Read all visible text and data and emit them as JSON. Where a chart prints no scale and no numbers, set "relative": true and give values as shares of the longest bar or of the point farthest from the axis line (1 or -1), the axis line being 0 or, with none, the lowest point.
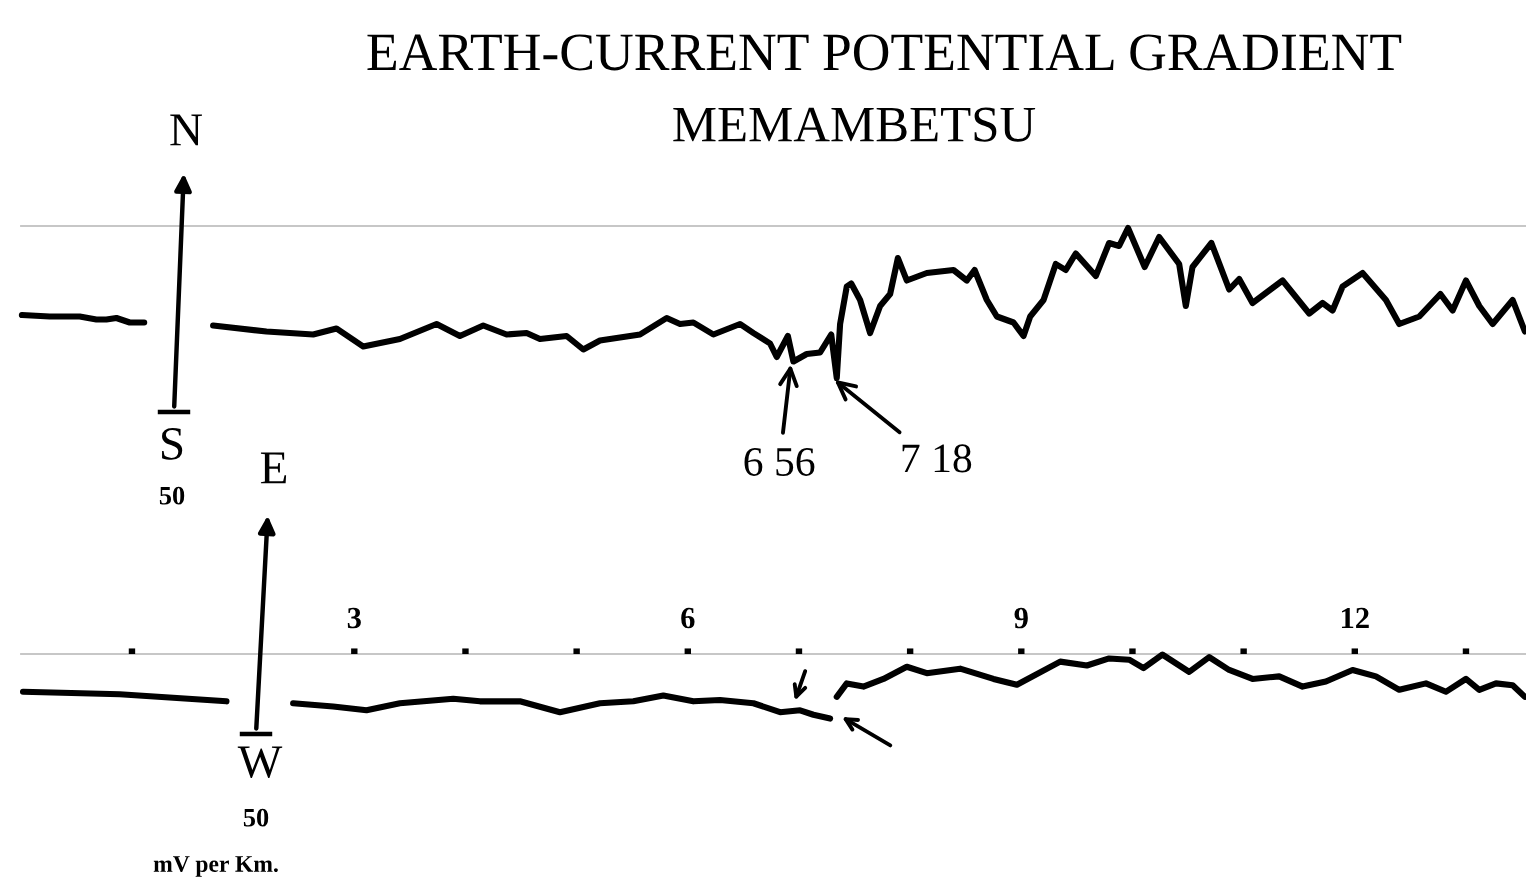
{
  "chart_data": [
    {
      "type": "line",
      "title": "EARTH-CURRENT POTENTIAL GRADIENT",
      "subtitle": "MEMAMBETSU",
      "relative": true,
      "xlim": [
        0,
        13.54
      ],
      "tick_labels": false,
      "series": [
        {
          "color": "#000000",
          "x": [
            0.01,
            0.26,
            0.53,
            0.68,
            0.77,
            0.86,
            0.98,
            1.11,
            1.4,
            1.73,
            2.21,
            2.63,
            2.84,
            3.08,
            3.41,
            3.74,
            3.95,
            4.16,
            4.37,
            4.55,
            4.67,
            4.91,
            5.06,
            5.21,
            5.57,
            5.81,
            5.93,
            6.05,
            6.23,
            6.47,
            6.59,
            6.74,
            6.8,
            6.9,
            6.95,
            7.07,
            7.19,
            7.29,
            7.34,
            7.37,
            7.43,
            7.47,
            7.55,
            7.64,
            7.73,
            7.82,
            7.89,
            7.97,
            8.15,
            8.39,
            8.51,
            8.58,
            8.69,
            8.78,
            8.93,
            9.02,
            9.08,
            9.2,
            9.31,
            9.4,
            9.49,
            9.67,
            9.79,
            9.88,
            9.96,
            10.11,
            10.24,
            10.42,
            10.48,
            10.54,
            10.71,
            10.87,
            10.96,
            11.08,
            11.35,
            11.59,
            11.71,
            11.8,
            11.89,
            12.07,
            12.28,
            12.4,
            12.58,
            12.77,
            12.88,
            13.0,
            13.12,
            13.24,
            13.42,
            13.53
          ],
          "values": [
            0.42,
            0.41,
            0.41,
            0.39,
            0.39,
            0.4,
            0.37,
            0.37,
            null,
            0.35,
            0.31,
            0.29,
            0.33,
            0.21,
            0.26,
            0.36,
            0.28,
            0.35,
            0.29,
            0.3,
            0.26,
            0.28,
            0.19,
            0.25,
            0.29,
            0.4,
            0.36,
            0.37,
            0.29,
            0.36,
            0.3,
            0.23,
            0.14,
            0.28,
            0.11,
            0.16,
            0.17,
            0.29,
            0,
            0.36,
            0.61,
            0.63,
            0.52,
            0.3,
            0.48,
            0.56,
            0.8,
            0.65,
            0.7,
            0.72,
            0.65,
            0.72,
            0.52,
            0.41,
            0.37,
            0.28,
            0.41,
            0.52,
            0.76,
            0.72,
            0.83,
            0.68,
            0.9,
            0.88,
            1,
            0.74,
            0.94,
            0.76,
            0.48,
            0.74,
            0.9,
            0.59,
            0.66,
            0.5,
            0.65,
            0.43,
            0.5,
            0.45,
            0.61,
            0.7,
            0.52,
            0.36,
            0.41,
            0.56,
            0.45,
            0.65,
            0.48,
            0.36,
            0.52,
            0.31
          ]
        }
      ],
      "annotations": [
        "N",
        "S",
        "50",
        {
          "text": "6 56",
          "x": 6.93,
          "y": 0.11
        },
        {
          "text": "7 18",
          "x": 7.3,
          "y": 0
        }
      ]
    },
    {
      "type": "line",
      "relative": true,
      "xlim": [
        0,
        13.54
      ],
      "xticks": [
        {
          "value": 1,
          "label": null
        },
        3,
        {
          "value": 4,
          "label": null
        },
        {
          "value": 5,
          "label": null
        },
        6,
        {
          "value": 7,
          "label": null
        },
        {
          "value": 8,
          "label": null
        },
        9,
        {
          "value": 10,
          "label": null
        },
        {
          "value": 11,
          "label": null
        },
        12,
        {
          "value": 13,
          "label": null
        }
      ],
      "tick_labels": "x",
      "series": [
        {
          "color": "#000000",
          "x": [
            0.02,
            0.89,
            1.85,
            2.1,
            2.45,
            2.81,
            3.11,
            3.41,
            3.89,
            4.13,
            4.49,
            4.85,
            5.21,
            5.51,
            5.78,
            6.05,
            6.29,
            6.59,
            6.83,
            7.01,
            7.13,
            7.28,
            7.3,
            7.34,
            7.43,
            7.58,
            7.76,
            7.97,
            8.15,
            8.45,
            8.75,
            8.96,
            9.35,
            9.59,
            9.79,
            9.97,
            10.1,
            10.27,
            10.51,
            10.69,
            10.87,
            11.08,
            11.32,
            11.53,
            11.74,
            11.98,
            12.19,
            12.4,
            12.64,
            12.82,
            13.0,
            13.12,
            13.27,
            13.42,
            13.53
          ],
          "values": [
            0.42,
            0.38,
            0.27,
            null,
            0.24,
            0.19,
            0.13,
            0.24,
            0.31,
            0.27,
            0.27,
            0.1,
            0.24,
            0.27,
            0.36,
            0.27,
            0.29,
            0.24,
            0.1,
            0.13,
            0.06,
            0,
            null,
            0.34,
            0.55,
            0.5,
            0.62,
            0.81,
            0.71,
            0.78,
            0.62,
            0.53,
            0.89,
            0.83,
            0.94,
            0.92,
            0.79,
            1,
            0.73,
            0.96,
            0.76,
            0.62,
            0.66,
            0.5,
            0.58,
            0.76,
            0.66,
            0.45,
            0.55,
            0.42,
            0.62,
            0.45,
            0.55,
            0.52,
            0.34
          ]
        }
      ],
      "annotations": [
        "E",
        "W",
        "50",
        "mV per Km."
      ]
    }
  ]
}
